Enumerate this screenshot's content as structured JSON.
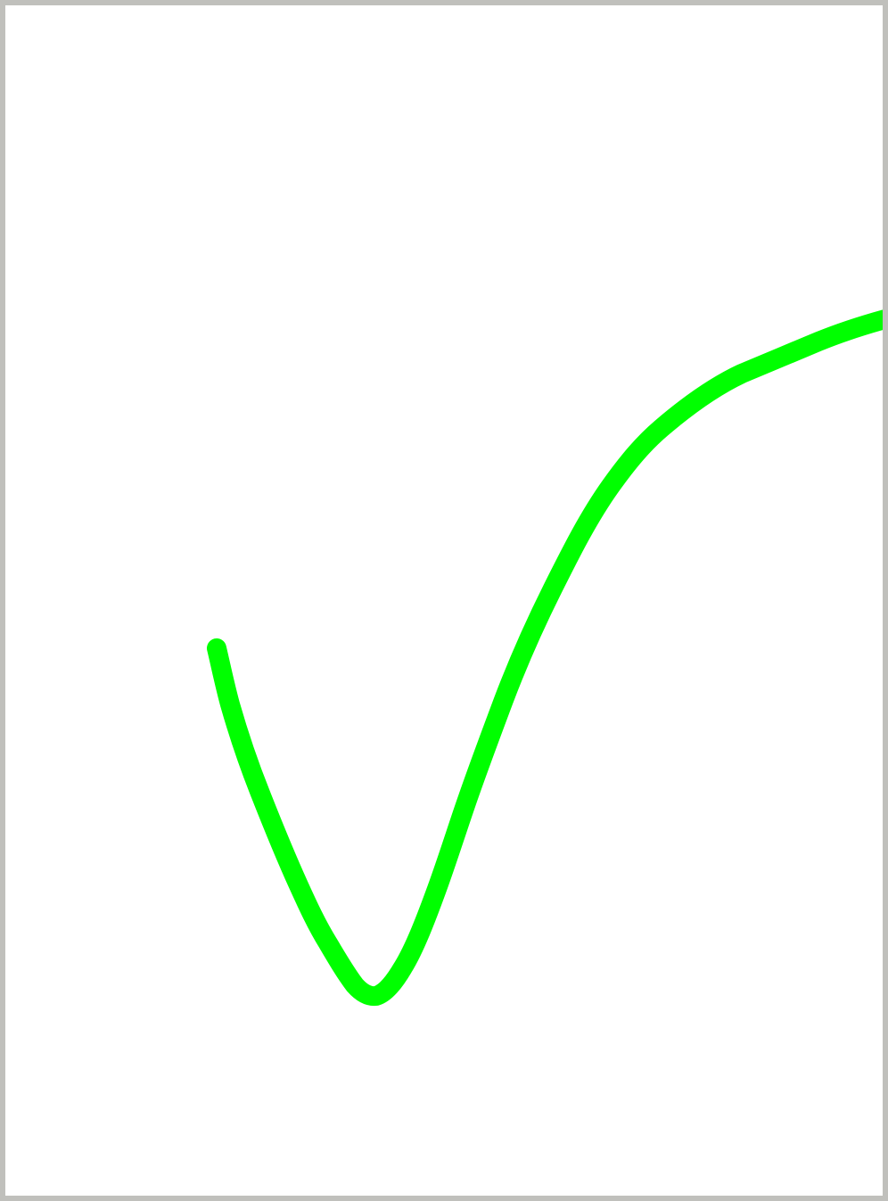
{
  "canvas": {
    "background_color": "#ffffff",
    "border_color": "#c0c0bc",
    "stroke_color": "#00ff00",
    "stroke_shape": "checkmark"
  }
}
